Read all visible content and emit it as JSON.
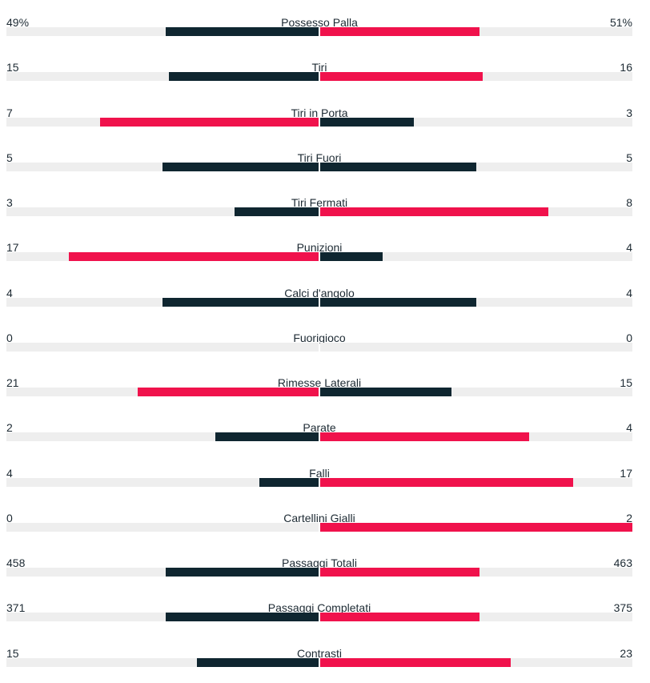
{
  "colors": {
    "leading": "#f0124c",
    "trailing": "#0f2630",
    "track": "#eeeeee"
  },
  "stats": [
    {
      "label": "Possesso Palla",
      "home": "49%",
      "away": "51%",
      "home_fill": 0.49,
      "away_fill": 0.51,
      "home_leads": false,
      "away_leads": true
    },
    {
      "label": "Tiri",
      "home": "15",
      "away": "16",
      "home_fill": 0.48,
      "away_fill": 0.52,
      "home_leads": false,
      "away_leads": true
    },
    {
      "label": "Tiri in Porta",
      "home": "7",
      "away": "3",
      "home_fill": 0.7,
      "away_fill": 0.3,
      "home_leads": true,
      "away_leads": false
    },
    {
      "label": "Tiri Fuori",
      "home": "5",
      "away": "5",
      "home_fill": 0.5,
      "away_fill": 0.5,
      "home_leads": false,
      "away_leads": false
    },
    {
      "label": "Tiri Fermati",
      "home": "3",
      "away": "8",
      "home_fill": 0.27,
      "away_fill": 0.73,
      "home_leads": false,
      "away_leads": true
    },
    {
      "label": "Punizioni",
      "home": "17",
      "away": "4",
      "home_fill": 0.8,
      "away_fill": 0.2,
      "home_leads": true,
      "away_leads": false
    },
    {
      "label": "Calci d'angolo",
      "home": "4",
      "away": "4",
      "home_fill": 0.5,
      "away_fill": 0.5,
      "home_leads": false,
      "away_leads": false
    },
    {
      "label": "Fuorigioco",
      "home": "0",
      "away": "0",
      "home_fill": 0.0,
      "away_fill": 0.0,
      "home_leads": false,
      "away_leads": false
    },
    {
      "label": "Rimesse Laterali",
      "home": "21",
      "away": "15",
      "home_fill": 0.58,
      "away_fill": 0.42,
      "home_leads": true,
      "away_leads": false
    },
    {
      "label": "Parate",
      "home": "2",
      "away": "4",
      "home_fill": 0.33,
      "away_fill": 0.67,
      "home_leads": false,
      "away_leads": true
    },
    {
      "label": "Falli",
      "home": "4",
      "away": "17",
      "home_fill": 0.19,
      "away_fill": 0.81,
      "home_leads": false,
      "away_leads": true
    },
    {
      "label": "Cartellini Gialli",
      "home": "0",
      "away": "2",
      "home_fill": 0.0,
      "away_fill": 1.0,
      "home_leads": false,
      "away_leads": true
    },
    {
      "label": "Passaggi Totali",
      "home": "458",
      "away": "463",
      "home_fill": 0.49,
      "away_fill": 0.51,
      "home_leads": false,
      "away_leads": true
    },
    {
      "label": "Passaggi Completati",
      "home": "371",
      "away": "375",
      "home_fill": 0.49,
      "away_fill": 0.51,
      "home_leads": false,
      "away_leads": true
    },
    {
      "label": "Contrasti",
      "home": "15",
      "away": "23",
      "home_fill": 0.39,
      "away_fill": 0.61,
      "home_leads": false,
      "away_leads": true
    }
  ]
}
